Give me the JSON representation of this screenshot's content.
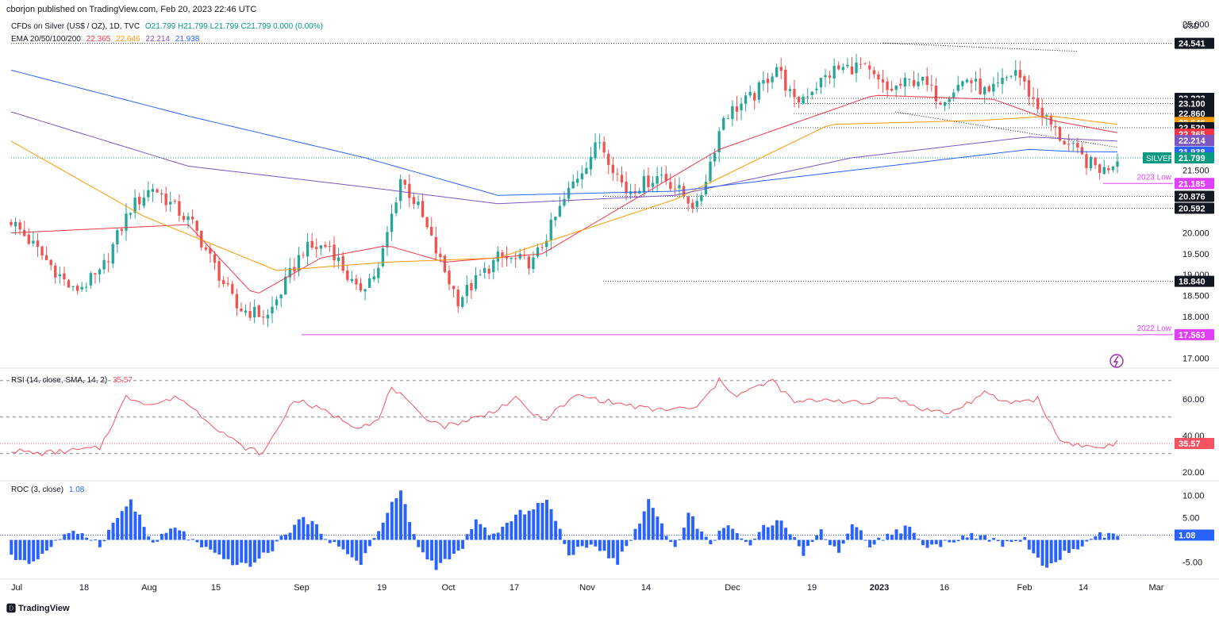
{
  "header": {
    "published": "cborjon published on TradingView.com, Feb 20, 2023 22:46 UTC"
  },
  "legend": {
    "symbol": "CFDs on Silver (US$ / OZ), 1D, TVC",
    "ohlc": "O21.799 H21.799 L21.799 C21.799 0.000 (0.00%)",
    "ema_label": "EMA 20/50/100/200",
    "ema20": "22.365",
    "ema50": "22.646",
    "ema100": "22.214",
    "ema200": "21.938",
    "rsi_label": "RSI (14, close, SMA, 14, 2)",
    "rsi_value": "35.57",
    "roc_label": "ROC (3, close)",
    "roc_value": "1.08"
  },
  "colors": {
    "up": "#26a69a",
    "down": "#ef5350",
    "ema20": "#f23645",
    "ema50": "#ff9800",
    "ema100": "#7e57c2",
    "ema200": "#2962ff",
    "rsi": "#f7525f",
    "roc": "#2962ff",
    "magenta": "#e040fb",
    "axis_text": "#131722"
  },
  "brand": {
    "name": "TradingView"
  },
  "chart_data": [
    {
      "type": "candlestick",
      "title": "",
      "currency": "USD",
      "ylim": [
        16.8,
        25.2
      ],
      "y_ticks": [
        "25.000",
        "20.000",
        "19.500",
        "19.000",
        "18.500",
        "18.000",
        "17.000"
      ],
      "x_ticks": [
        "Jul",
        "18",
        "Aug",
        "15",
        "Sep",
        "19",
        "Oct",
        "17",
        "Nov",
        "14",
        "Dec",
        "19",
        "2023",
        "16",
        "Feb",
        "14",
        "Mar"
      ],
      "price_labels": [
        {
          "value": "24.541",
          "kind": "level"
        },
        {
          "value": "23.223",
          "kind": "level"
        },
        {
          "value": "23.100",
          "kind": "level"
        },
        {
          "value": "22.860",
          "kind": "level"
        },
        {
          "value": "22.646",
          "kind": "ema50"
        },
        {
          "value": "22.520",
          "kind": "level"
        },
        {
          "value": "22.365",
          "kind": "ema20"
        },
        {
          "value": "22.214",
          "kind": "ema100"
        },
        {
          "value": "21.938",
          "kind": "ema200"
        },
        {
          "value": "21.799",
          "kind": "price"
        },
        {
          "value": "21.500",
          "kind": "tick"
        },
        {
          "value": "21.185",
          "kind": "low"
        },
        {
          "value": "20.876",
          "kind": "level"
        },
        {
          "value": "20.592",
          "kind": "level"
        },
        {
          "value": "18.840",
          "kind": "level"
        },
        {
          "value": "17.563",
          "kind": "low"
        }
      ],
      "symbol_tag": "SILVER",
      "annotations": [
        {
          "text": "2023 Low",
          "value": 21.185
        },
        {
          "text": "2022 Low",
          "value": 17.563
        }
      ],
      "anchors": [
        [
          0,
          20.3
        ],
        [
          10,
          19.1
        ],
        [
          14,
          18.6
        ],
        [
          20,
          19.0
        ],
        [
          27,
          20.6
        ],
        [
          32,
          21.1
        ],
        [
          41,
          20.2
        ],
        [
          51,
          18.2
        ],
        [
          58,
          18.0
        ],
        [
          66,
          19.6
        ],
        [
          72,
          19.7
        ],
        [
          78,
          18.6
        ],
        [
          83,
          19.1
        ],
        [
          88,
          21.3
        ],
        [
          92,
          20.6
        ],
        [
          97,
          19.3
        ],
        [
          101,
          18.4
        ],
        [
          110,
          19.4
        ],
        [
          118,
          19.3
        ],
        [
          127,
          21.2
        ],
        [
          133,
          22.2
        ],
        [
          139,
          21.0
        ],
        [
          147,
          21.4
        ],
        [
          155,
          20.6
        ],
        [
          161,
          22.8
        ],
        [
          168,
          23.3
        ],
        [
          173,
          24.0
        ],
        [
          177,
          23.1
        ],
        [
          186,
          23.9
        ],
        [
          192,
          24.0
        ],
        [
          198,
          23.4
        ],
        [
          205,
          23.7
        ],
        [
          210,
          23.2
        ],
        [
          216,
          23.7
        ],
        [
          221,
          23.3
        ],
        [
          227,
          23.9
        ],
        [
          232,
          23.0
        ],
        [
          237,
          22.3
        ],
        [
          243,
          21.7
        ],
        [
          247,
          21.5
        ],
        [
          250,
          21.8
        ]
      ],
      "n_candles": 251,
      "ema": {
        "ema20": [
          [
            0,
            20.0
          ],
          [
            40,
            20.2
          ],
          [
            55,
            18.5
          ],
          [
            70,
            19.4
          ],
          [
            85,
            19.7
          ],
          [
            98,
            19.3
          ],
          [
            120,
            19.5
          ],
          [
            160,
            22.0
          ],
          [
            195,
            23.3
          ],
          [
            222,
            23.2
          ],
          [
            235,
            22.7
          ],
          [
            250,
            22.4
          ]
        ],
        "ema50": [
          [
            0,
            22.2
          ],
          [
            30,
            20.4
          ],
          [
            60,
            19.1
          ],
          [
            85,
            19.3
          ],
          [
            110,
            19.4
          ],
          [
            150,
            20.8
          ],
          [
            185,
            22.6
          ],
          [
            220,
            22.7
          ],
          [
            235,
            22.8
          ],
          [
            250,
            22.6
          ]
        ],
        "ema100": [
          [
            0,
            22.9
          ],
          [
            40,
            21.6
          ],
          [
            80,
            21.1
          ],
          [
            110,
            20.7
          ],
          [
            150,
            20.9
          ],
          [
            190,
            21.8
          ],
          [
            230,
            22.3
          ],
          [
            240,
            22.25
          ],
          [
            250,
            22.2
          ]
        ],
        "ema200": [
          [
            0,
            23.9
          ],
          [
            40,
            22.8
          ],
          [
            80,
            21.8
          ],
          [
            110,
            20.9
          ],
          [
            150,
            21.0
          ],
          [
            190,
            21.5
          ],
          [
            230,
            22.0
          ],
          [
            240,
            21.95
          ],
          [
            250,
            21.94
          ]
        ]
      }
    },
    {
      "type": "line",
      "title": "RSI",
      "ylim": [
        16,
        76
      ],
      "y_ticks": [
        "60.00",
        "40.00",
        "20.00"
      ],
      "levels": [
        70,
        50,
        30
      ],
      "value": 35.57,
      "anchors": [
        [
          0,
          32
        ],
        [
          6,
          30
        ],
        [
          20,
          33
        ],
        [
          26,
          61
        ],
        [
          32,
          57
        ],
        [
          38,
          61
        ],
        [
          44,
          49
        ],
        [
          52,
          34
        ],
        [
          57,
          30
        ],
        [
          64,
          60
        ],
        [
          72,
          52
        ],
        [
          78,
          45
        ],
        [
          83,
          48
        ],
        [
          86,
          67
        ],
        [
          92,
          52
        ],
        [
          98,
          45
        ],
        [
          107,
          51
        ],
        [
          114,
          60
        ],
        [
          120,
          48
        ],
        [
          128,
          62
        ],
        [
          136,
          58
        ],
        [
          145,
          54
        ],
        [
          155,
          55
        ],
        [
          160,
          70
        ],
        [
          164,
          62
        ],
        [
          172,
          70
        ],
        [
          177,
          58
        ],
        [
          185,
          60
        ],
        [
          193,
          57
        ],
        [
          198,
          62
        ],
        [
          205,
          55
        ],
        [
          212,
          52
        ],
        [
          220,
          63
        ],
        [
          225,
          58
        ],
        [
          232,
          60
        ],
        [
          237,
          37
        ],
        [
          243,
          34
        ],
        [
          246,
          33
        ],
        [
          250,
          36
        ]
      ]
    },
    {
      "type": "bar",
      "title": "ROC",
      "ylim": [
        -8.5,
        13
      ],
      "y_ticks": [
        "10.00",
        "5.00",
        "-5.00"
      ],
      "value": 1.08,
      "anchors": [
        [
          0,
          -4
        ],
        [
          5,
          -5
        ],
        [
          11,
          0.5
        ],
        [
          16,
          1.8
        ],
        [
          20,
          -1
        ],
        [
          24,
          5
        ],
        [
          27,
          9
        ],
        [
          32,
          -1
        ],
        [
          37,
          3
        ],
        [
          42,
          -1
        ],
        [
          47,
          -4
        ],
        [
          53,
          -6
        ],
        [
          58,
          -3
        ],
        [
          62,
          1.5
        ],
        [
          66,
          5
        ],
        [
          70,
          2
        ],
        [
          74,
          -2
        ],
        [
          79,
          -5
        ],
        [
          83,
          2
        ],
        [
          86,
          8
        ],
        [
          88,
          11
        ],
        [
          92,
          -2
        ],
        [
          96,
          -6
        ],
        [
          101,
          -3
        ],
        [
          105,
          4
        ],
        [
          109,
          1
        ],
        [
          115,
          6
        ],
        [
          121,
          9
        ],
        [
          126,
          -3
        ],
        [
          132,
          -1
        ],
        [
          137,
          -5
        ],
        [
          141,
          2
        ],
        [
          144,
          9
        ],
        [
          150,
          -2
        ],
        [
          153,
          6
        ],
        [
          158,
          -1
        ],
        [
          162,
          4
        ],
        [
          167,
          -2
        ],
        [
          170,
          3
        ],
        [
          174,
          5
        ],
        [
          179,
          -3
        ],
        [
          183,
          2
        ],
        [
          187,
          -3
        ],
        [
          190,
          4
        ],
        [
          194,
          -1
        ],
        [
          198,
          1
        ],
        [
          203,
          3
        ],
        [
          207,
          -2
        ],
        [
          214,
          0.5
        ],
        [
          218,
          1
        ],
        [
          224,
          -1
        ],
        [
          229,
          0
        ],
        [
          234,
          -7
        ],
        [
          238,
          -3
        ],
        [
          243,
          -1
        ],
        [
          246,
          1
        ],
        [
          250,
          1.08
        ]
      ]
    }
  ]
}
